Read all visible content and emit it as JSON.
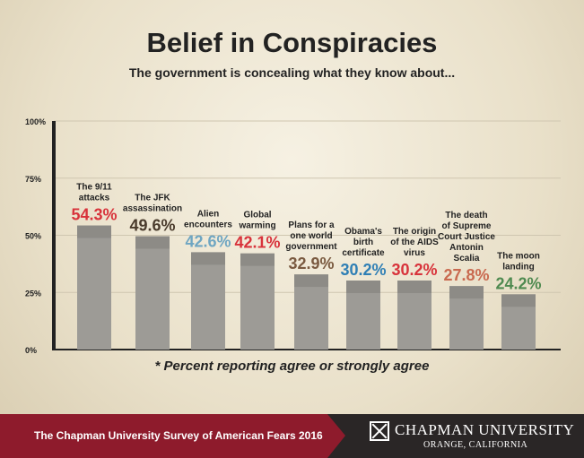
{
  "chart_data": {
    "type": "bar",
    "title": "Belief in Conspiracies",
    "subtitle": "The government is concealing what they know about...",
    "ylim": [
      0,
      100
    ],
    "yticks": [
      "0%",
      "25%",
      "50%",
      "75%",
      "100%"
    ],
    "categories": [
      [
        "The 9/11",
        "attacks"
      ],
      [
        "The JFK",
        "assassination"
      ],
      [
        "Alien",
        "encounters"
      ],
      [
        "Global",
        "warming"
      ],
      [
        "Plans for a",
        "one world",
        "government"
      ],
      [
        "Obama's",
        "birth",
        "certificate"
      ],
      [
        "The origin",
        "of the AIDS",
        "virus"
      ],
      [
        "The death",
        "of Supreme",
        "Court Justice",
        "Antonin",
        "Scalia"
      ],
      [
        "The moon",
        "landing"
      ]
    ],
    "values": [
      54.3,
      49.6,
      42.6,
      42.1,
      32.9,
      30.2,
      30.2,
      27.8,
      24.2
    ],
    "value_labels": [
      "54.3%",
      "49.6%",
      "42.6%",
      "42.1%",
      "32.9%",
      "30.2%",
      "30.2%",
      "27.8%",
      "24.2%"
    ],
    "value_colors": [
      "#d8333b",
      "#4a3b2c",
      "#6fa6c2",
      "#d8333b",
      "#7a5a40",
      "#2f7fb5",
      "#d8333b",
      "#c96a50",
      "#4f8a50"
    ],
    "grid": true,
    "note": "* Percent reporting agree or strongly agree"
  },
  "footer": {
    "survey": "The Chapman University Survey of American Fears 2016",
    "university": "CHAPMAN UNIVERSITY",
    "location": "ORANGE, CALIFORNIA"
  }
}
